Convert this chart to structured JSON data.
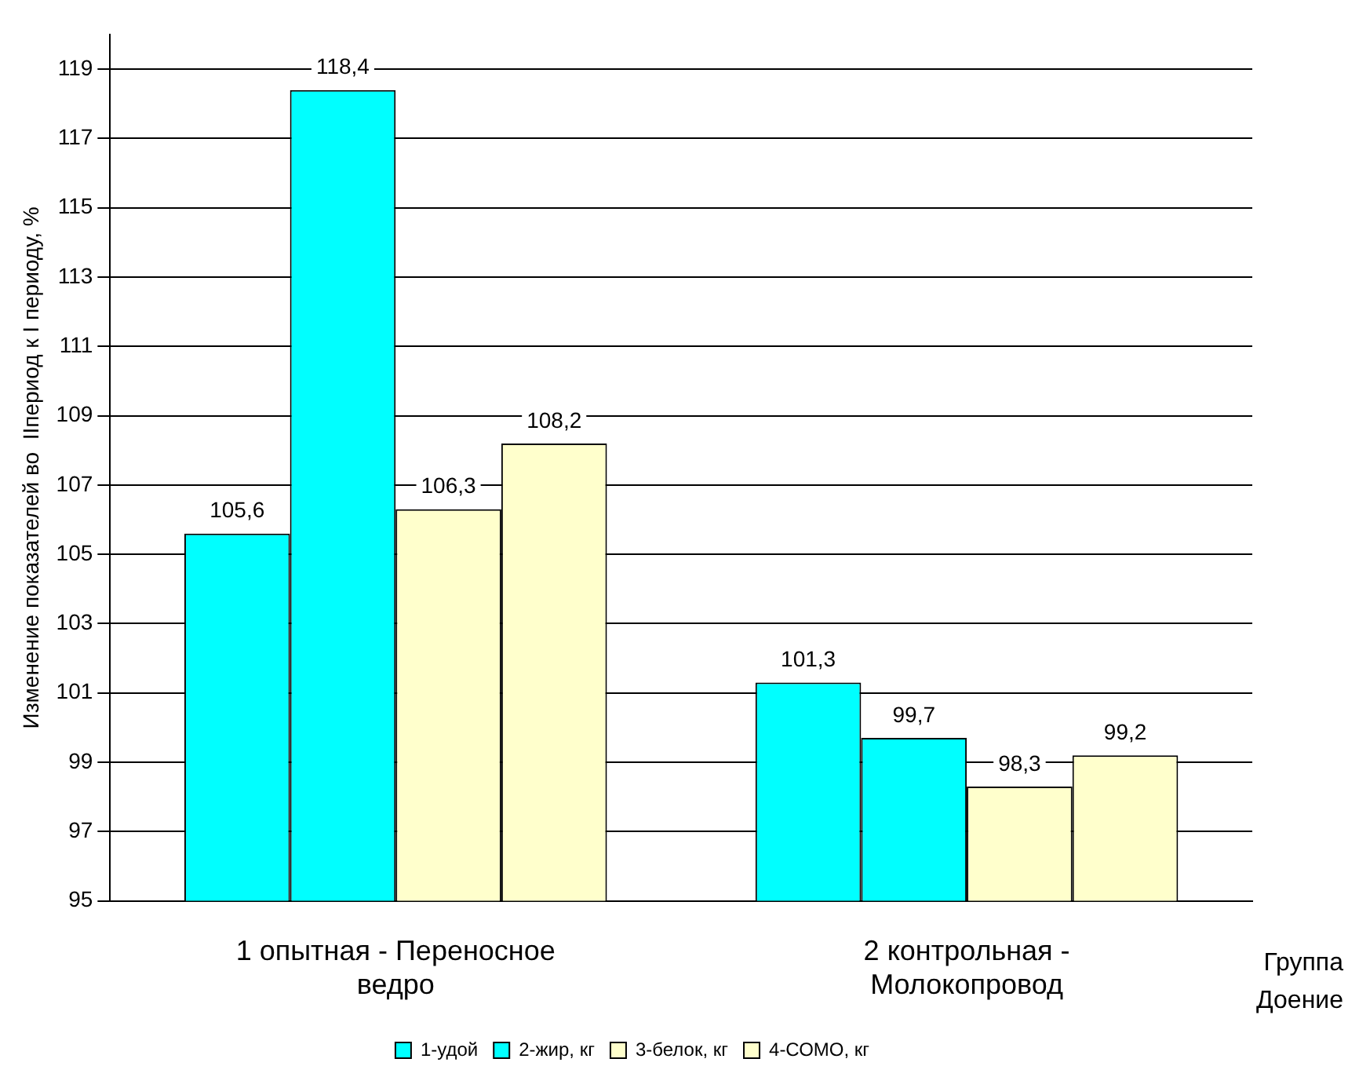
{
  "chart_data": {
    "type": "bar",
    "ylabel": "Изменение показателей во  IIпериод к I периоду, %",
    "xlabel": "Группа Доение",
    "categories": [
      "1 опытная - Переносное ведро",
      "2 контрольная - Молокопровод"
    ],
    "series": [
      {
        "name": "1-удой",
        "color": "#00ffff",
        "values": [
          105.6,
          101.3
        ],
        "value_labels": [
          "105,6",
          "101,3"
        ]
      },
      {
        "name": "2-жир, кг",
        "color": "#00ffff",
        "values": [
          118.4,
          99.7
        ],
        "value_labels": [
          "118,4",
          "99,7"
        ]
      },
      {
        "name": "3-белок, кг",
        "color": "#ffffcc",
        "values": [
          106.3,
          98.3
        ],
        "value_labels": [
          "106,3",
          "98,3"
        ]
      },
      {
        "name": "4-СОМО, кг",
        "color": "#ffffcc",
        "values": [
          108.2,
          99.2
        ],
        "value_labels": [
          "108,2",
          "99,2"
        ]
      }
    ],
    "ylim": [
      95,
      120
    ],
    "yticks": [
      95,
      97,
      99,
      101,
      103,
      105,
      107,
      109,
      111,
      113,
      115,
      117,
      119
    ],
    "grid": "y",
    "legend": "bottom"
  }
}
